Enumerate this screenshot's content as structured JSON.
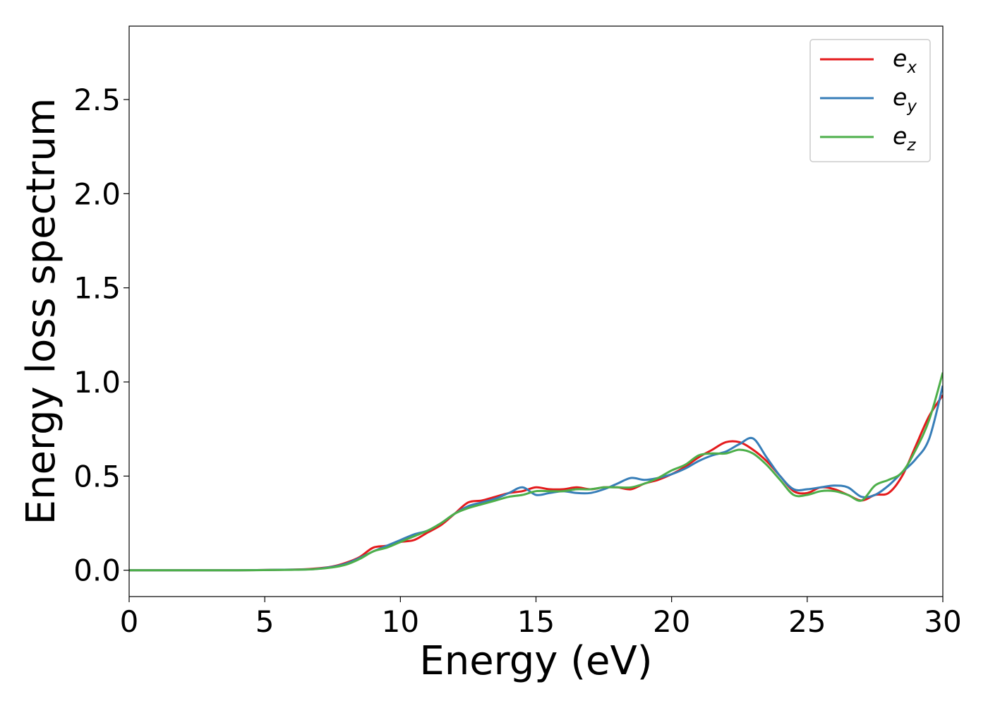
{
  "chart_data": {
    "type": "line",
    "title": "",
    "xlabel": "Energy (eV)",
    "ylabel": "Energy loss spectrum",
    "xlim": [
      0,
      30
    ],
    "ylim": [
      -0.14,
      2.89
    ],
    "xticks": [
      0,
      5,
      10,
      15,
      20,
      25,
      30
    ],
    "xtick_labels": [
      "0",
      "5",
      "10",
      "15",
      "20",
      "25",
      "30"
    ],
    "yticks": [
      0.0,
      0.5,
      1.0,
      1.5,
      2.0,
      2.5
    ],
    "ytick_labels": [
      "0.0",
      "0.5",
      "1.0",
      "1.5",
      "2.0",
      "2.5"
    ],
    "grid": false,
    "legend_position": "top-right",
    "series": [
      {
        "name": "e_x",
        "legend_base": "e",
        "legend_sub": "x",
        "color": "#e41a1c",
        "x": [
          0,
          2,
          4,
          6,
          6.8,
          7.5,
          8.0,
          8.5,
          9.0,
          9.5,
          10.0,
          10.5,
          11.0,
          11.5,
          12.0,
          12.5,
          13.0,
          13.5,
          14.0,
          14.5,
          15.0,
          15.5,
          16.0,
          16.5,
          17.0,
          17.5,
          18.0,
          18.5,
          19.0,
          19.5,
          20.0,
          20.5,
          21.0,
          21.5,
          22.0,
          22.5,
          23.0,
          23.5,
          24.0,
          24.5,
          25.0,
          25.5,
          26.0,
          26.5,
          27.0,
          27.5,
          28.0,
          28.5,
          29.0,
          29.5,
          30.0
        ],
        "y": [
          0.0,
          0.0,
          0.0,
          0.003,
          0.008,
          0.02,
          0.04,
          0.07,
          0.12,
          0.13,
          0.15,
          0.16,
          0.2,
          0.24,
          0.3,
          0.36,
          0.37,
          0.39,
          0.41,
          0.42,
          0.44,
          0.43,
          0.43,
          0.44,
          0.43,
          0.44,
          0.44,
          0.43,
          0.46,
          0.48,
          0.51,
          0.55,
          0.6,
          0.64,
          0.68,
          0.68,
          0.64,
          0.58,
          0.5,
          0.42,
          0.41,
          0.44,
          0.43,
          0.4,
          0.37,
          0.4,
          0.41,
          0.5,
          0.66,
          0.82,
          0.93
        ]
      },
      {
        "name": "e_y",
        "legend_base": "e",
        "legend_sub": "y",
        "color": "#377eb8",
        "x": [
          0,
          2,
          4,
          6,
          6.8,
          7.5,
          8.0,
          8.5,
          9.0,
          9.5,
          10.0,
          10.5,
          11.0,
          11.5,
          12.0,
          12.5,
          13.0,
          13.5,
          14.0,
          14.5,
          15.0,
          15.5,
          16.0,
          16.5,
          17.0,
          17.5,
          18.0,
          18.5,
          19.0,
          19.5,
          20.0,
          20.5,
          21.0,
          21.5,
          22.0,
          22.5,
          23.0,
          23.5,
          24.0,
          24.5,
          25.0,
          25.5,
          26.0,
          26.5,
          27.0,
          27.5,
          28.0,
          28.5,
          29.0,
          29.5,
          30.0
        ],
        "y": [
          0.0,
          0.0,
          0.0,
          0.003,
          0.006,
          0.018,
          0.035,
          0.065,
          0.1,
          0.13,
          0.16,
          0.19,
          0.21,
          0.25,
          0.3,
          0.34,
          0.36,
          0.38,
          0.41,
          0.44,
          0.4,
          0.41,
          0.42,
          0.41,
          0.41,
          0.43,
          0.46,
          0.49,
          0.48,
          0.49,
          0.51,
          0.54,
          0.58,
          0.61,
          0.63,
          0.67,
          0.7,
          0.6,
          0.5,
          0.43,
          0.43,
          0.44,
          0.45,
          0.44,
          0.39,
          0.4,
          0.45,
          0.52,
          0.59,
          0.7,
          0.98
        ]
      },
      {
        "name": "e_z",
        "legend_base": "e",
        "legend_sub": "z",
        "color": "#4daf4a",
        "x": [
          0,
          2,
          4,
          6,
          6.8,
          7.5,
          8.0,
          8.5,
          9.0,
          9.5,
          10.0,
          10.5,
          11.0,
          11.5,
          12.0,
          12.5,
          13.0,
          13.5,
          14.0,
          14.5,
          15.0,
          15.5,
          16.0,
          16.5,
          17.0,
          17.5,
          18.0,
          18.5,
          19.0,
          19.5,
          20.0,
          20.5,
          21.0,
          21.5,
          22.0,
          22.5,
          23.0,
          23.5,
          24.0,
          24.5,
          25.0,
          25.5,
          26.0,
          26.5,
          27.0,
          27.5,
          28.0,
          28.5,
          29.0,
          29.5,
          30.0
        ],
        "y": [
          0.0,
          0.0,
          0.0,
          0.002,
          0.005,
          0.015,
          0.03,
          0.06,
          0.1,
          0.12,
          0.15,
          0.18,
          0.21,
          0.25,
          0.3,
          0.33,
          0.35,
          0.37,
          0.39,
          0.4,
          0.42,
          0.42,
          0.42,
          0.43,
          0.43,
          0.44,
          0.44,
          0.44,
          0.46,
          0.49,
          0.53,
          0.56,
          0.61,
          0.62,
          0.62,
          0.64,
          0.62,
          0.56,
          0.48,
          0.4,
          0.4,
          0.42,
          0.42,
          0.4,
          0.37,
          0.45,
          0.48,
          0.52,
          0.64,
          0.8,
          1.05
        ]
      }
    ]
  }
}
